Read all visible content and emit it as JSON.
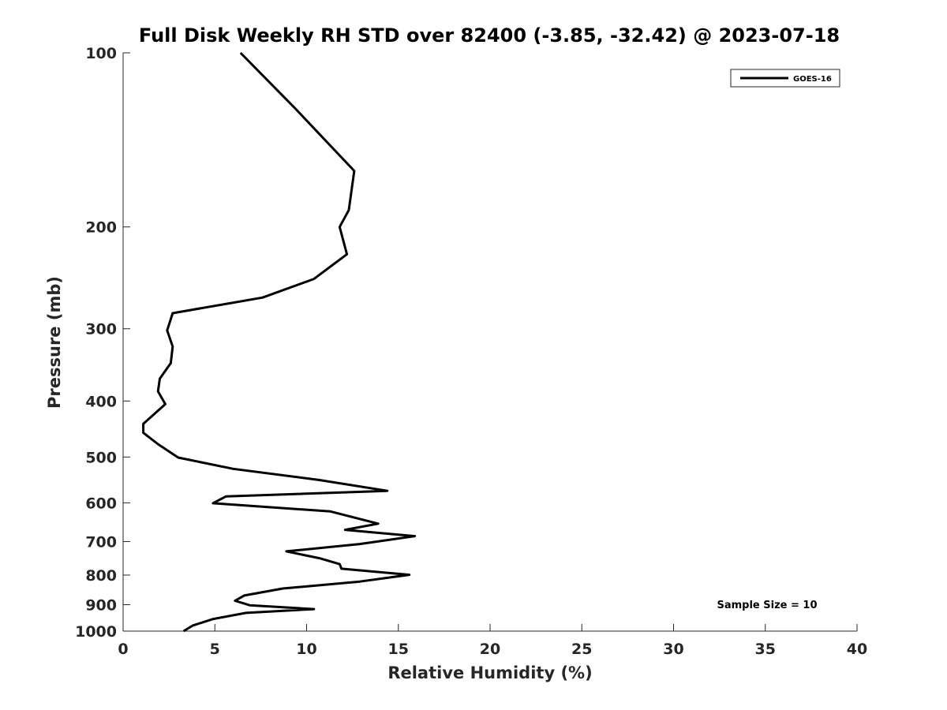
{
  "chart_data": {
    "type": "line",
    "title": "Full Disk Weekly RH STD over 82400 (-3.85, -32.42) @ 2023-07-18",
    "xlabel": "Relative Humidity (%)",
    "ylabel": "Pressure (mb)",
    "xlim": [
      0,
      40
    ],
    "ylim": [
      100,
      1000
    ],
    "y_scale": "log",
    "y_reversed": true,
    "grid": false,
    "legend_position": "top-right",
    "xticks": [
      0,
      5,
      10,
      15,
      20,
      25,
      30,
      35,
      40
    ],
    "yticks": [
      100,
      200,
      300,
      400,
      500,
      600,
      700,
      800,
      900,
      1000
    ],
    "series": [
      {
        "name": "GOES-16",
        "color": "#000000",
        "x": [
          6.4,
          9.4,
          12.6,
          12.3,
          11.8,
          12.2,
          10.4,
          7.6,
          2.7,
          2.4,
          2.7,
          2.6,
          2.0,
          1.9,
          2.3,
          1.1,
          1.1,
          1.9,
          3.0,
          6.0,
          10.7,
          14.4,
          5.6,
          4.9,
          11.3,
          13.9,
          12.1,
          15.9,
          12.9,
          8.9,
          10.7,
          11.8,
          11.9,
          15.6,
          12.9,
          8.7,
          6.6,
          6.1,
          6.9,
          10.4,
          6.7,
          4.9,
          3.8,
          3.3
        ],
        "y": [
          100,
          125,
          160,
          187,
          200,
          223,
          246,
          265,
          282,
          302,
          322,
          344,
          366,
          385,
          405,
          438,
          454,
          475,
          501,
          524,
          548,
          572,
          585,
          601,
          621,
          652,
          668,
          685,
          707,
          728,
          748,
          766,
          780,
          799,
          821,
          844,
          868,
          886,
          902,
          916,
          930,
          953,
          978,
          1000
        ]
      }
    ],
    "annotation": "Sample Size = 10"
  }
}
